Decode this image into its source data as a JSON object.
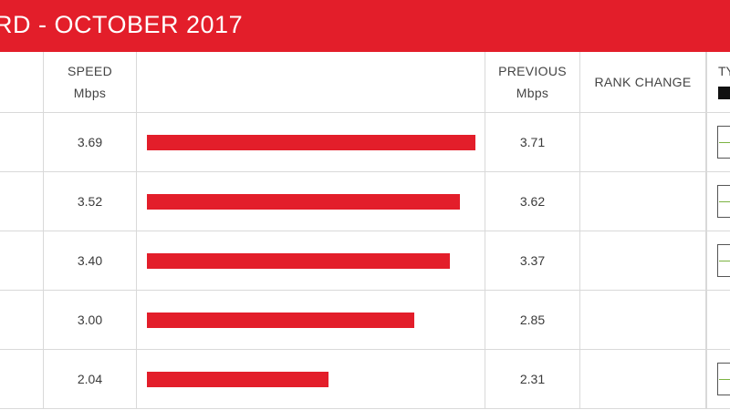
{
  "header": {
    "title": "RD - OCTOBER 2017"
  },
  "columns": {
    "speed_label": "SPEED",
    "speed_unit": "Mbps",
    "previous_label": "PREVIOUS",
    "previous_unit": "Mbps",
    "rank_change_label": "RANK CHANGE",
    "type_label": "TY"
  },
  "colors": {
    "accent": "#e31e2a",
    "trend_line": "#7cb342"
  },
  "chart_data": {
    "type": "bar",
    "orientation": "horizontal",
    "xlim": [
      0,
      3.69
    ],
    "series": [
      {
        "name": "SPEED",
        "values": [
          3.69,
          3.52,
          3.4,
          3.0,
          2.04
        ]
      },
      {
        "name": "PREVIOUS",
        "values": [
          3.71,
          3.62,
          3.37,
          2.85,
          2.31
        ]
      }
    ],
    "speed_labels": [
      "3.69",
      "3.52",
      "3.40",
      "3.00",
      "2.04"
    ],
    "previous_labels": [
      "3.71",
      "3.62",
      "3.37",
      "2.85",
      "2.31"
    ],
    "rank_change": [
      "",
      "",
      "",
      "",
      ""
    ],
    "type_icon": [
      "trend-chart-icon",
      "trend-chart-icon",
      "trend-chart-icon",
      "",
      "trend-chart-icon"
    ]
  }
}
